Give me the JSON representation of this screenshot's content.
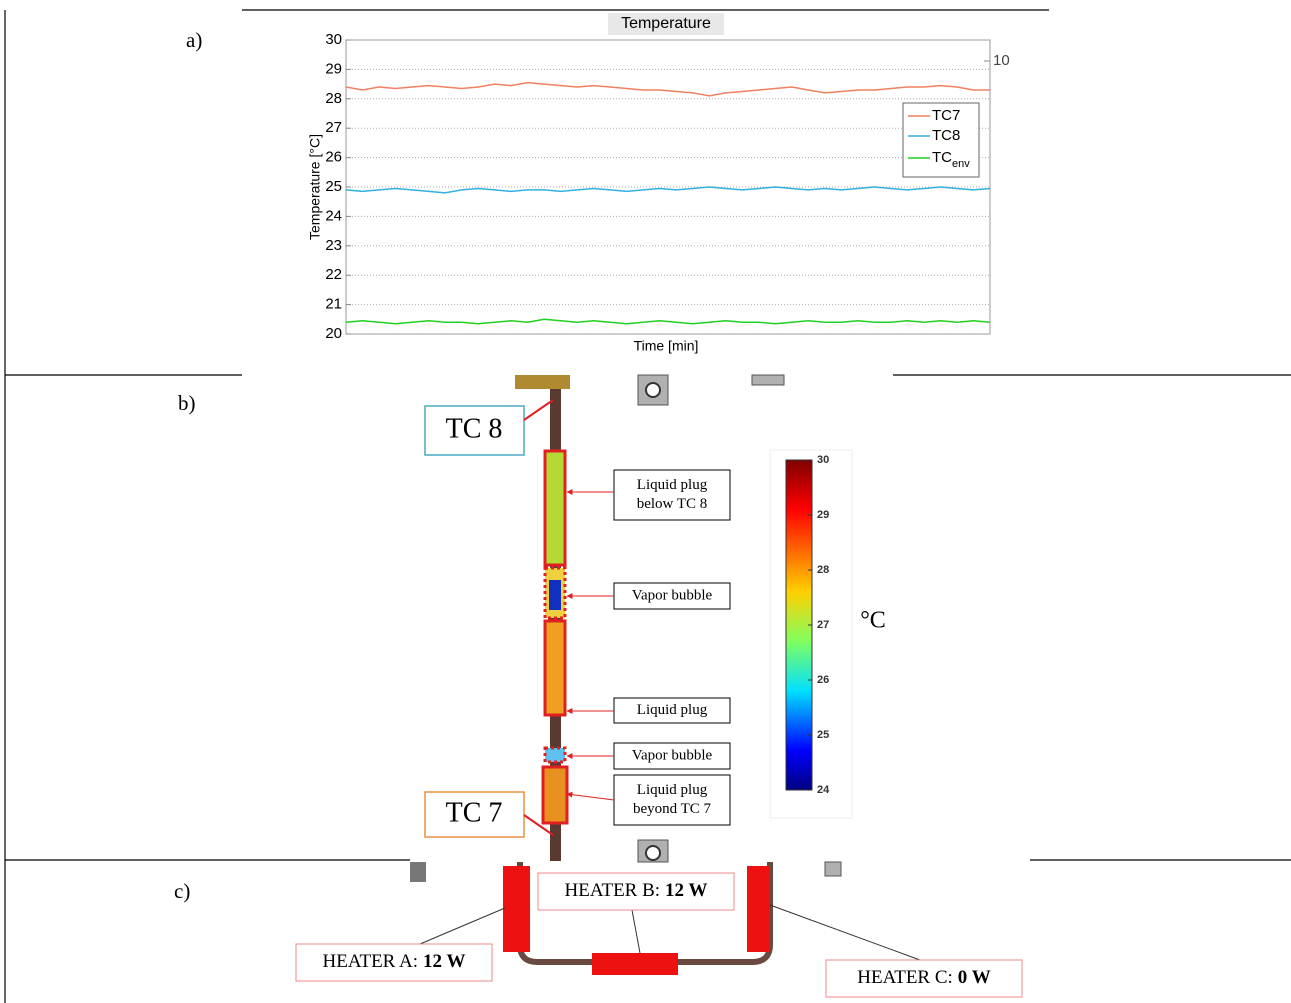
{
  "panel_labels": [
    "a)",
    "b)",
    "c)"
  ],
  "chart_data": {
    "type": "line",
    "title": "Temperature",
    "ylabel": "Temperature [°C]",
    "xlabel": "Time [min]",
    "annotations": [
      "10"
    ],
    "ylim": [
      20,
      30
    ],
    "yticks": [
      20,
      21,
      22,
      23,
      24,
      25,
      26,
      27,
      28,
      29,
      30
    ],
    "grid": true,
    "series": [
      {
        "name": "TC7",
        "color": "#f08060",
        "values": [
          28.4,
          28.3,
          28.4,
          28.35,
          28.4,
          28.45,
          28.4,
          28.35,
          28.4,
          28.5,
          28.45,
          28.55,
          28.5,
          28.45,
          28.4,
          28.45,
          28.4,
          28.35,
          28.3,
          28.3,
          28.25,
          28.2,
          28.1,
          28.2,
          28.25,
          28.3,
          28.35,
          28.4,
          28.3,
          28.2,
          28.25,
          28.3,
          28.3,
          28.35,
          28.4,
          28.4,
          28.45,
          28.4,
          28.3,
          28.3
        ]
      },
      {
        "name": "TC8",
        "color": "#30b0e0",
        "values": [
          24.9,
          24.85,
          24.9,
          24.95,
          24.9,
          24.85,
          24.8,
          24.9,
          24.95,
          24.9,
          24.85,
          24.9,
          24.9,
          24.85,
          24.9,
          24.95,
          24.9,
          24.85,
          24.9,
          24.95,
          24.9,
          24.95,
          25.0,
          24.95,
          24.9,
          24.95,
          25.0,
          24.95,
          24.9,
          24.95,
          24.9,
          24.95,
          25.0,
          24.95,
          24.9,
          24.95,
          25.0,
          24.95,
          24.9,
          24.95
        ]
      },
      {
        "name": "TC",
        "name_sub": "env",
        "color": "#20d020",
        "values": [
          20.4,
          20.45,
          20.4,
          20.35,
          20.4,
          20.45,
          20.4,
          20.4,
          20.35,
          20.4,
          20.45,
          20.4,
          20.5,
          20.45,
          20.4,
          20.45,
          20.4,
          20.35,
          20.4,
          20.45,
          20.4,
          20.35,
          20.4,
          20.45,
          20.4,
          20.4,
          20.35,
          20.4,
          20.45,
          20.4,
          20.4,
          20.45,
          20.4,
          20.4,
          20.45,
          20.4,
          20.45,
          20.4,
          20.45,
          20.4
        ]
      }
    ]
  },
  "thermal_image": {
    "sensors": [
      "TC 8",
      "TC 7"
    ],
    "callouts": [
      [
        "Liquid plug",
        "below TC 8"
      ],
      [
        "Vapor bubble"
      ],
      [
        "Liquid plug"
      ],
      [
        "Vapor bubble"
      ],
      [
        "Liquid plug",
        "beyond TC 7"
      ]
    ],
    "colorbar": {
      "range": [
        24,
        30
      ],
      "ticks": [
        24,
        25,
        26,
        27,
        28,
        29,
        30
      ],
      "unit": "°C"
    }
  },
  "heaters": [
    {
      "label": "HEATER A:",
      "power": "12 W"
    },
    {
      "label": "HEATER B:",
      "power": "12 W"
    },
    {
      "label": "HEATER C:",
      "power": "0 W"
    }
  ]
}
